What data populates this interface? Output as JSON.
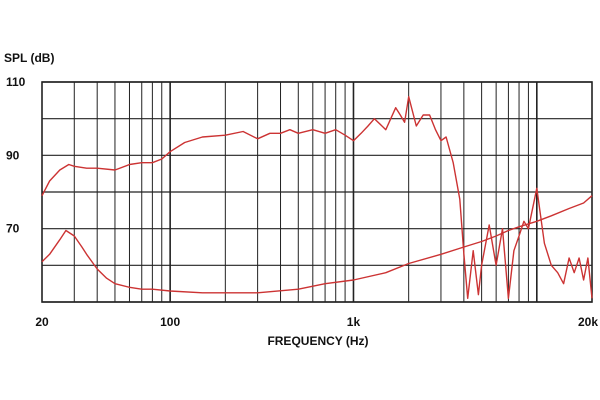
{
  "chart_data": {
    "type": "line",
    "title": "",
    "xlabel": "FREQUENCY (Hz)",
    "ylabel": "SPL (dB)",
    "x_scale": "log",
    "xlim": [
      20,
      20000
    ],
    "ylim": [
      50,
      110
    ],
    "x_tick_labels": [
      {
        "value": 20,
        "label": "20"
      },
      {
        "value": 100,
        "label": "100"
      },
      {
        "value": 1000,
        "label": "1k"
      },
      {
        "value": 20000,
        "label": "20k"
      }
    ],
    "y_tick_labels": [
      {
        "value": 110,
        "label": "110"
      },
      {
        "value": 90,
        "label": "90"
      },
      {
        "value": 70,
        "label": "70"
      }
    ],
    "grid": true,
    "line_color": "#cc3333",
    "grid_color": "#222222",
    "series": [
      {
        "x": [
          20,
          22,
          25,
          28,
          30,
          35,
          40,
          50,
          60,
          70,
          80,
          90,
          100,
          120,
          150,
          200,
          250,
          300,
          350,
          400,
          450,
          500,
          600,
          700,
          800,
          900,
          1000,
          1100,
          1200,
          1300,
          1500,
          1700,
          1800,
          1900,
          2000,
          2200,
          2400,
          2600,
          2800,
          3000,
          3200,
          3500,
          3800,
          4000,
          4200,
          4500,
          4800,
          5000,
          5500,
          6000,
          6500,
          7000,
          7500,
          8000,
          8500,
          9000,
          10000,
          11000,
          12000,
          13000,
          14000,
          15000,
          16000,
          17000,
          18000,
          19000,
          20000
        ],
        "y": [
          79,
          83,
          86,
          87.5,
          87,
          86.5,
          86.5,
          86,
          87.5,
          88,
          88,
          89,
          91,
          93.5,
          95,
          95.5,
          96.5,
          94.5,
          96,
          96,
          97,
          96,
          97,
          96,
          97,
          95.5,
          94,
          96,
          98,
          100,
          97,
          103,
          101,
          99,
          106,
          98,
          101,
          101,
          97,
          94,
          95,
          88,
          78,
          63,
          51,
          64,
          52,
          60,
          71,
          60,
          70,
          51,
          64,
          68,
          72,
          70,
          81,
          66,
          60,
          58,
          55,
          62,
          58,
          62,
          56,
          62,
          51
        ]
      },
      {
        "x": [
          20,
          22,
          25,
          27,
          30,
          33,
          35,
          40,
          45,
          50,
          60,
          70,
          80,
          100,
          150,
          200,
          300,
          500,
          700,
          1000,
          1500,
          2000,
          3000,
          4000,
          5000,
          6000,
          7000,
          8000,
          10000,
          12000,
          15000,
          18000,
          20000
        ],
        "y": [
          61,
          63,
          67,
          69.5,
          68,
          65,
          63,
          59,
          56.5,
          55,
          54,
          53.5,
          53.5,
          53,
          52.5,
          52.5,
          52.5,
          53.5,
          55,
          56,
          58,
          60.5,
          63,
          65,
          66.5,
          68,
          69.5,
          70.5,
          72,
          73.5,
          75.5,
          77,
          79
        ]
      }
    ]
  }
}
